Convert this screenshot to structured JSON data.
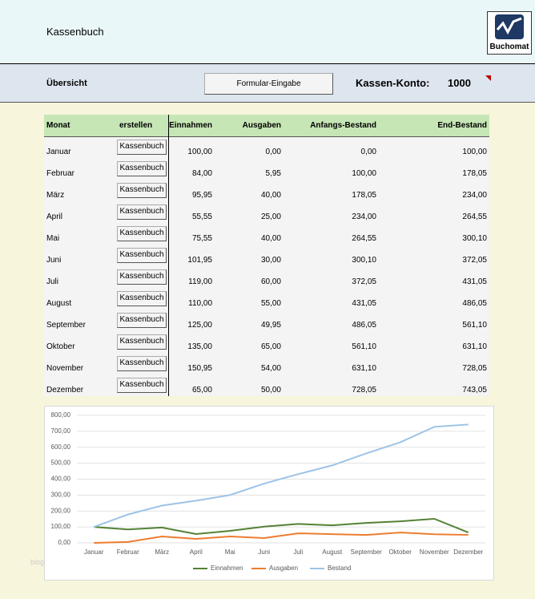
{
  "header": {
    "title": "Kassenbuch",
    "logo": "Buchomat"
  },
  "toolbar": {
    "section": "Übersicht",
    "button": "Formular-Eingabe",
    "account_label": "Kassen-Konto:",
    "account_number": "1000"
  },
  "table": {
    "columns": [
      "Monat",
      "erstellen",
      "Einnahmen",
      "Ausgaben",
      "Anfangs-Bestand",
      "End-Bestand"
    ],
    "rows": [
      [
        "Januar",
        "Kassenbuch",
        "100,00",
        "0,00",
        "0,00",
        "100,00"
      ],
      [
        "Februar",
        "Kassenbuch",
        "84,00",
        "5,95",
        "100,00",
        "178,05"
      ],
      [
        "März",
        "Kassenbuch",
        "95,95",
        "40,00",
        "178,05",
        "234,00"
      ],
      [
        "April",
        "Kassenbuch",
        "55,55",
        "25,00",
        "234,00",
        "264,55"
      ],
      [
        "Mai",
        "Kassenbuch",
        "75,55",
        "40,00",
        "264,55",
        "300,10"
      ],
      [
        "Juni",
        "Kassenbuch",
        "101,95",
        "30,00",
        "300,10",
        "372,05"
      ],
      [
        "Juli",
        "Kassenbuch",
        "119,00",
        "60,00",
        "372,05",
        "431,05"
      ],
      [
        "August",
        "Kassenbuch",
        "110,00",
        "55,00",
        "431,05",
        "486,05"
      ],
      [
        "September",
        "Kassenbuch",
        "125,00",
        "49,95",
        "486,05",
        "561,10"
      ],
      [
        "Oktober",
        "Kassenbuch",
        "135,00",
        "65,00",
        "561,10",
        "631,10"
      ],
      [
        "November",
        "Kassenbuch",
        "150,95",
        "54,00",
        "631,10",
        "728,05"
      ],
      [
        "Dezember",
        "Kassenbuch",
        "65,00",
        "50,00",
        "728,05",
        "743,05"
      ]
    ]
  },
  "watermark": "blog",
  "chart_data": {
    "type": "line",
    "categories": [
      "Januar",
      "Februar",
      "März",
      "April",
      "Mai",
      "Juni",
      "Juli",
      "August",
      "September",
      "Oktober",
      "November",
      "Dezember"
    ],
    "series": [
      {
        "name": "Einnahmen",
        "color": "#548235",
        "values": [
          100,
          84,
          95.95,
          55.55,
          75.55,
          101.95,
          119,
          110,
          125,
          135,
          150.95,
          65
        ]
      },
      {
        "name": "Ausgaben",
        "color": "#ed7d31",
        "values": [
          0,
          5.95,
          40,
          25,
          40,
          30,
          60,
          55,
          49.95,
          65,
          54,
          50
        ]
      },
      {
        "name": "Bestand",
        "color": "#9dc3e6",
        "values": [
          100,
          178.05,
          234,
          264.55,
          300.1,
          372.05,
          431.05,
          486.05,
          561.1,
          631.1,
          728.05,
          743.05
        ]
      }
    ],
    "ylim": [
      0,
      800
    ],
    "yticks": [
      {
        "value": 0,
        "label": "0,00"
      },
      {
        "value": 100,
        "label": "100,00"
      },
      {
        "value": 200,
        "label": "200,00"
      },
      {
        "value": 300,
        "label": "300,00"
      },
      {
        "value": 400,
        "label": "400,00"
      },
      {
        "value": 500,
        "label": "500,00"
      },
      {
        "value": 600,
        "label": "600,00"
      },
      {
        "value": 700,
        "label": "700,00"
      },
      {
        "value": 800,
        "label": "800,00"
      }
    ],
    "grid": true,
    "legend": "bottom"
  }
}
